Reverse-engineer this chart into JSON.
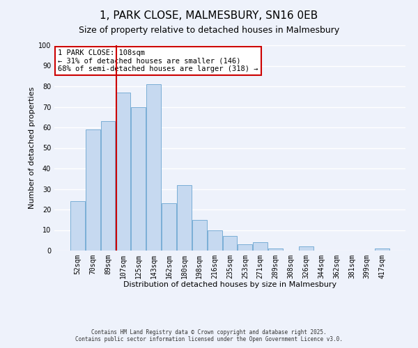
{
  "title": "1, PARK CLOSE, MALMESBURY, SN16 0EB",
  "subtitle": "Size of property relative to detached houses in Malmesbury",
  "xlabel": "Distribution of detached houses by size in Malmesbury",
  "ylabel": "Number of detached properties",
  "bar_labels": [
    "52sqm",
    "70sqm",
    "89sqm",
    "107sqm",
    "125sqm",
    "143sqm",
    "162sqm",
    "180sqm",
    "198sqm",
    "216sqm",
    "235sqm",
    "253sqm",
    "271sqm",
    "289sqm",
    "308sqm",
    "326sqm",
    "344sqm",
    "362sqm",
    "381sqm",
    "399sqm",
    "417sqm"
  ],
  "bar_values": [
    24,
    59,
    63,
    77,
    70,
    81,
    23,
    32,
    15,
    10,
    7,
    3,
    4,
    1,
    0,
    2,
    0,
    0,
    0,
    0,
    1
  ],
  "bar_color": "#c6d9f0",
  "bar_edge_color": "#7aaed6",
  "vline_color": "#cc0000",
  "vline_index": 3,
  "annotation_title": "1 PARK CLOSE: 108sqm",
  "annotation_line1": "← 31% of detached houses are smaller (146)",
  "annotation_line2": "68% of semi-detached houses are larger (318) →",
  "annotation_box_color": "#cc0000",
  "annotation_bg": "#ffffff",
  "ylim": [
    0,
    100
  ],
  "yticks": [
    0,
    10,
    20,
    30,
    40,
    50,
    60,
    70,
    80,
    90,
    100
  ],
  "bg_color": "#eef2fb",
  "footer_line1": "Contains HM Land Registry data © Crown copyright and database right 2025.",
  "footer_line2": "Contains public sector information licensed under the Open Government Licence v3.0.",
  "grid_color": "#ffffff",
  "title_fontsize": 11,
  "subtitle_fontsize": 9,
  "tick_fontsize": 7,
  "xlabel_fontsize": 8,
  "ylabel_fontsize": 8,
  "footer_fontsize": 5.5
}
